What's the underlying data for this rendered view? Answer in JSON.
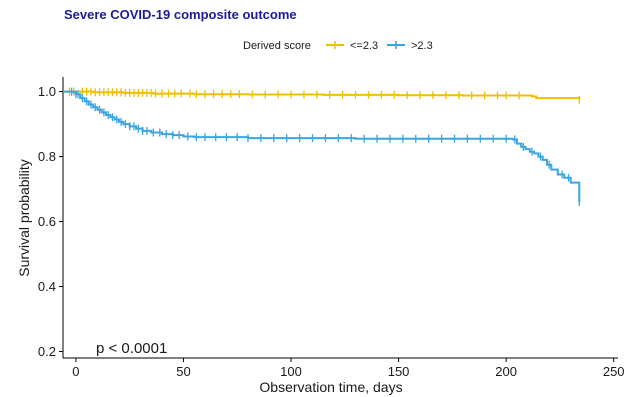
{
  "colors": {
    "title": "#1c1c99",
    "series_low": "#efc000",
    "series_high": "#3aa5e0",
    "axis": "#000000"
  },
  "chart_data": {
    "type": "line",
    "subtype": "kaplan-meier step survival curve",
    "title": "Severe COVID-19 composite outcome",
    "xlabel": "Observation time, days",
    "ylabel": "Survival probability",
    "xlim": [
      -6,
      252
    ],
    "ylim": [
      0.18,
      1.045
    ],
    "x_ticks": [
      0,
      50,
      100,
      150,
      200,
      250
    ],
    "y_ticks": [
      0.2,
      0.4,
      0.6,
      0.8,
      1.0
    ],
    "x_tick_labels": [
      "0",
      "50",
      "100",
      "150",
      "200",
      "250"
    ],
    "y_tick_labels": [
      "0.2",
      "0.4",
      "0.6",
      "0.8",
      "1.0"
    ],
    "grid": false,
    "legend": {
      "title": "Derived score",
      "position": "top",
      "entries": [
        "<=2.3",
        ">2.3"
      ]
    },
    "annotation": "p < 0.0001",
    "series": [
      {
        "name": "<=2.3",
        "color": "#efc000",
        "steps": [
          [
            -6,
            1.0
          ],
          [
            8,
            0.998
          ],
          [
            22,
            0.996
          ],
          [
            36,
            0.994
          ],
          [
            55,
            0.992
          ],
          [
            80,
            0.991
          ],
          [
            115,
            0.99
          ],
          [
            150,
            0.989
          ],
          [
            180,
            0.988
          ],
          [
            212,
            0.985
          ],
          [
            214,
            0.98
          ],
          [
            234,
            0.975
          ]
        ],
        "censor_x": [
          -3,
          -1,
          3,
          5,
          7,
          9,
          11,
          13,
          15,
          17,
          19,
          21,
          23,
          25,
          27,
          29,
          31,
          33,
          35,
          37,
          40,
          43,
          46,
          49,
          53,
          56,
          60,
          64,
          68,
          72,
          76,
          82,
          88,
          94,
          100,
          106,
          112,
          118,
          124,
          130,
          136,
          142,
          148,
          154,
          160,
          166,
          172,
          178,
          184,
          190,
          196,
          200,
          206,
          234
        ]
      },
      {
        "name": ">2.3",
        "color": "#3aa5e0",
        "steps": [
          [
            -6,
            1.0
          ],
          [
            -1,
            0.997
          ],
          [
            0,
            0.992
          ],
          [
            2,
            0.98
          ],
          [
            4,
            0.97
          ],
          [
            6,
            0.96
          ],
          [
            8,
            0.952
          ],
          [
            10,
            0.944
          ],
          [
            12,
            0.936
          ],
          [
            14,
            0.928
          ],
          [
            16,
            0.921
          ],
          [
            18,
            0.914
          ],
          [
            20,
            0.907
          ],
          [
            22,
            0.9
          ],
          [
            25,
            0.893
          ],
          [
            28,
            0.886
          ],
          [
            31,
            0.879
          ],
          [
            35,
            0.874
          ],
          [
            40,
            0.869
          ],
          [
            45,
            0.866
          ],
          [
            50,
            0.862
          ],
          [
            55,
            0.86
          ],
          [
            80,
            0.857
          ],
          [
            130,
            0.855
          ],
          [
            203,
            0.853
          ],
          [
            205,
            0.84
          ],
          [
            207,
            0.83
          ],
          [
            209,
            0.823
          ],
          [
            211,
            0.815
          ],
          [
            213,
            0.81
          ],
          [
            215,
            0.8
          ],
          [
            217,
            0.79
          ],
          [
            219,
            0.775
          ],
          [
            221,
            0.76
          ],
          [
            224,
            0.745
          ],
          [
            227,
            0.735
          ],
          [
            230,
            0.72
          ],
          [
            234,
            0.66
          ]
        ],
        "censor_x": [
          -2,
          0,
          1,
          3,
          5,
          7,
          9,
          11,
          13,
          15,
          17,
          19,
          21,
          23,
          25,
          27,
          29,
          31,
          33,
          36,
          39,
          42,
          45,
          48,
          52,
          56,
          60,
          65,
          70,
          75,
          80,
          86,
          92,
          98,
          104,
          110,
          116,
          122,
          128,
          134,
          140,
          146,
          152,
          158,
          164,
          170,
          176,
          182,
          188,
          194,
          200,
          204,
          208,
          212,
          216,
          220,
          226,
          229,
          234
        ]
      }
    ]
  }
}
